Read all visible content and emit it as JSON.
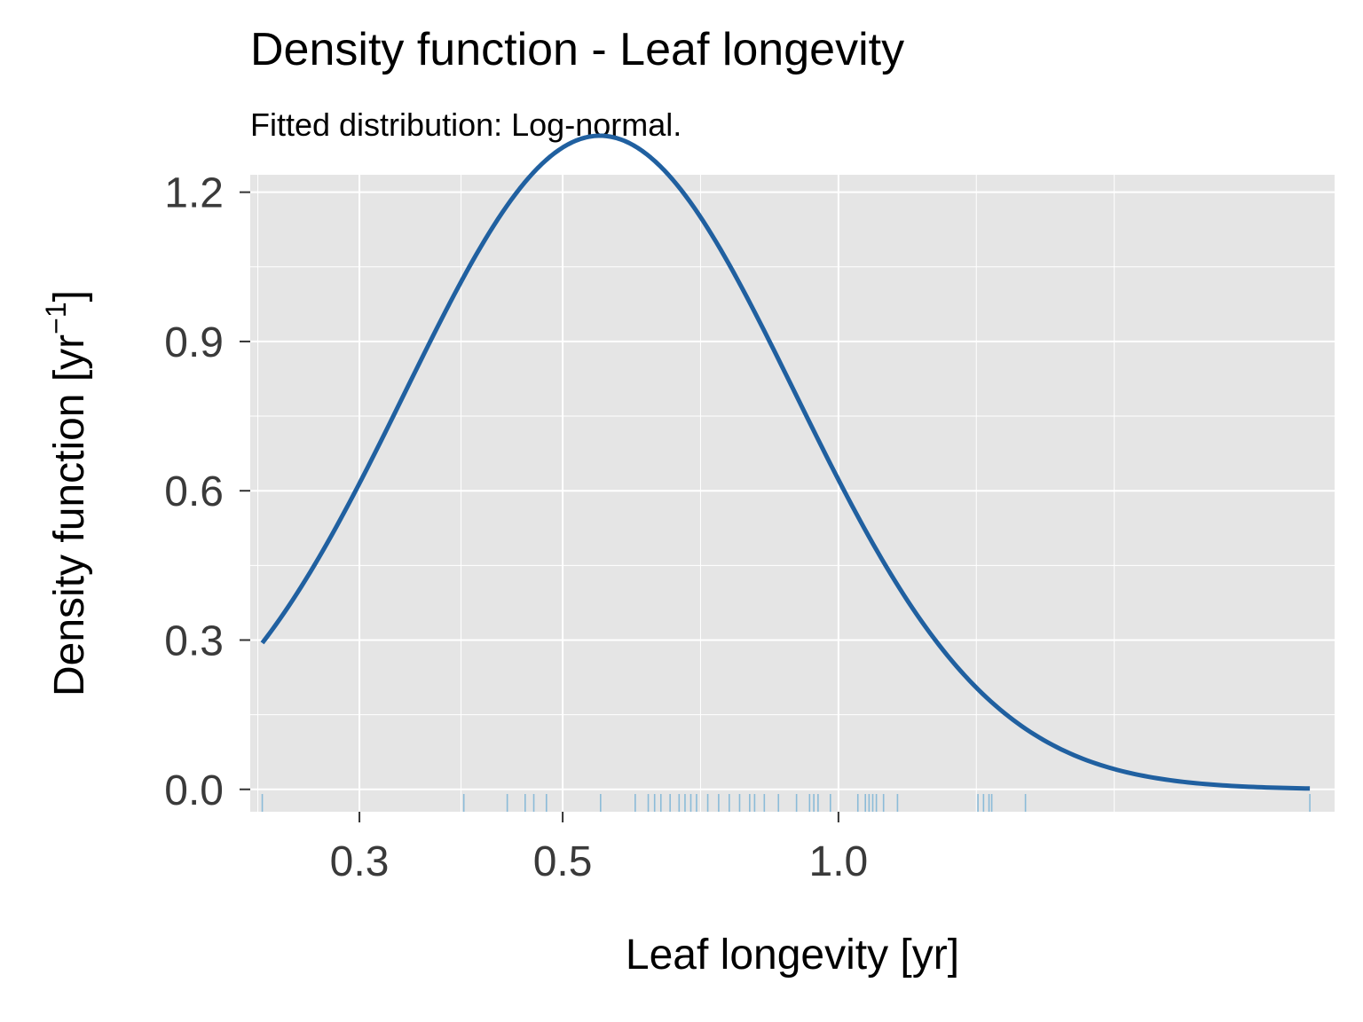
{
  "title": "Density function - Leaf longevity",
  "subtitle": "Fitted distribution: Log-normal.",
  "colors": {
    "panel": "#e5e5e5",
    "grid": "#ffffff",
    "curve": "#2060a0",
    "rug": "#8bbbd8",
    "tick_text": "#3a3a3a"
  },
  "chart_data": {
    "type": "line",
    "title": "Density function - Leaf longevity",
    "subtitle": "Fitted distribution: Log-normal.",
    "xlabel": "Leaf longevity [yr]",
    "ylabel_main": "Density function [yr",
    "ylabel_sup": "−1",
    "ylabel_close": "]",
    "x_scale": "log",
    "x_range": [
      0.228,
      3.48
    ],
    "y_range": [
      -0.045,
      1.235
    ],
    "x_ticks": [
      {
        "value": 0.3,
        "label": "0.3"
      },
      {
        "value": 0.5,
        "label": "0.5"
      },
      {
        "value": 1.0,
        "label": "1.0"
      }
    ],
    "y_ticks": [
      {
        "value": 0.0,
        "label": "0.0"
      },
      {
        "value": 0.3,
        "label": "0.3"
      },
      {
        "value": 0.6,
        "label": "0.6"
      },
      {
        "value": 0.9,
        "label": "0.9"
      },
      {
        "value": 1.2,
        "label": "1.2"
      }
    ],
    "grid": true,
    "series": [
      {
        "distribution": "lognormal",
        "meanlog": -0.359,
        "sdlog": 0.4905,
        "x_from": 0.235,
        "x_to": 3.27
      }
    ],
    "rug": [
      0.235,
      0.39,
      0.435,
      0.455,
      0.465,
      0.48,
      0.55,
      0.6,
      0.62,
      0.63,
      0.64,
      0.655,
      0.67,
      0.68,
      0.69,
      0.7,
      0.72,
      0.74,
      0.76,
      0.78,
      0.8,
      0.81,
      0.83,
      0.86,
      0.9,
      0.93,
      0.94,
      0.95,
      0.98,
      1.05,
      1.07,
      1.08,
      1.09,
      1.1,
      1.12,
      1.16,
      1.42,
      1.44,
      1.46,
      1.47,
      1.6,
      3.27
    ]
  }
}
